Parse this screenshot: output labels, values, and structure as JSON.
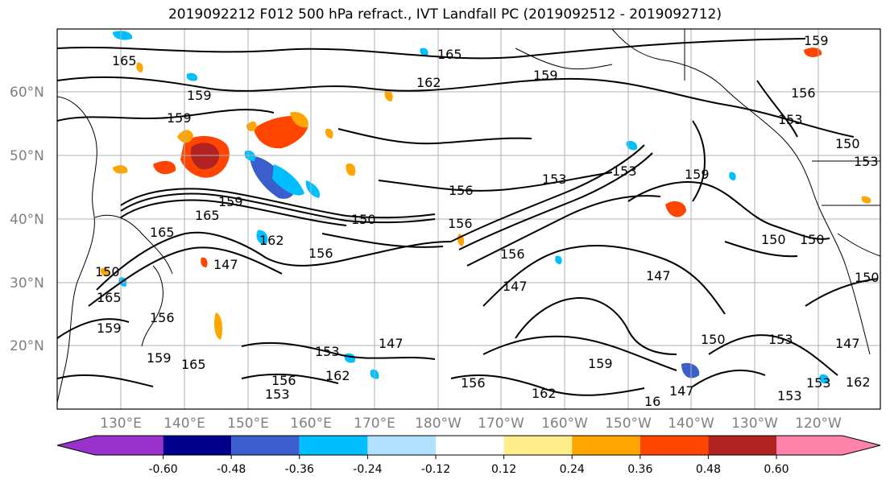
{
  "title": "2019092212 F012 500 hPa refract., IVT Landfall PC (2019092512 - 2019092712)",
  "lat_labels": [
    "60°N",
    "50°N",
    "40°N",
    "30°N",
    "20°N"
  ],
  "lon_labels": [
    "130°E",
    "140°E",
    "150°E",
    "160°E",
    "170°E",
    "180°W",
    "170°W",
    "160°W",
    "150°W",
    "140°W",
    "130°W",
    "120°W"
  ],
  "colorbar": {
    "colors": [
      "#9932cc",
      "#00008b",
      "#3a5fcd",
      "#00bfff",
      "#b0e2ff",
      "#ffffff",
      "#ffec8b",
      "#ffa500",
      "#ff4500",
      "#b22222",
      "#ff82ab"
    ],
    "labels": [
      "-0.60",
      "-0.48",
      "-0.36",
      "-0.24",
      "-0.12",
      "0.12",
      "0.24",
      "0.36",
      "0.48",
      "0.60"
    ]
  },
  "contour_labels": [
    "165",
    "165",
    "162",
    "159",
    "159",
    "159",
    "159",
    "156",
    "153",
    "150",
    "153",
    "153",
    "159",
    "150",
    "156",
    "153",
    "150",
    "156",
    "156",
    "147",
    "150",
    "147",
    "162",
    "165",
    "165",
    "159",
    "150",
    "159",
    "156",
    "159",
    "147",
    "156",
    "165",
    "165",
    "162",
    "153",
    "156",
    "153",
    "147",
    "147",
    "162",
    "159",
    "156",
    "150",
    "153",
    "147",
    "16",
    "153",
    "150",
    "153",
    "162"
  ]
}
